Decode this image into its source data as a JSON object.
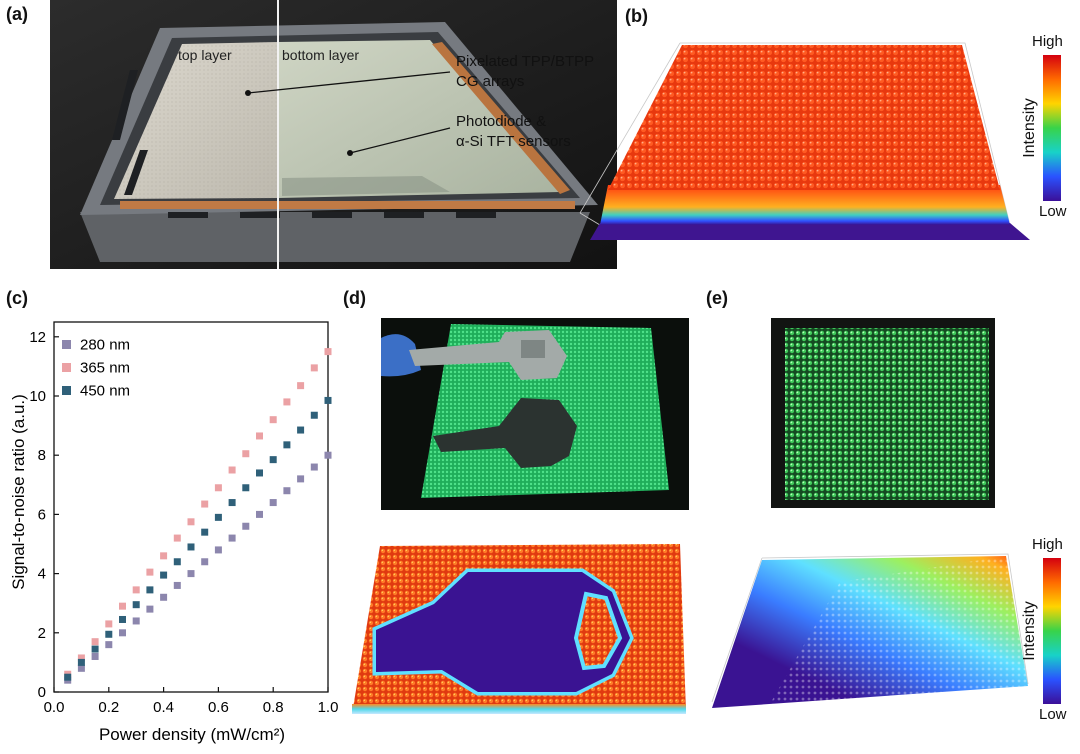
{
  "panels": {
    "a": {
      "label": "(a)",
      "top_layer": "top layer",
      "bottom_layer": "bottom layer",
      "annotation_1_line1": "Pixelated TPP/BTPP",
      "annotation_1_line2": "CG arrays",
      "annotation_2_line1": "Photodiode &",
      "annotation_2_line2": "α-Si TFT sensors"
    },
    "b": {
      "label": "(b)",
      "colorbar_high": "High",
      "colorbar_low": "Low",
      "colorbar_title": "Intensity"
    },
    "c": {
      "label": "(c)"
    },
    "d": {
      "label": "(d)"
    },
    "e": {
      "label": "(e)",
      "colorbar_high": "High",
      "colorbar_low": "Low",
      "colorbar_title": "Intensity"
    }
  },
  "chart_data": {
    "type": "scatter",
    "xlabel": "Power density (mW/cm²)",
    "ylabel": "Signal-to-noise ratio (a.u.)",
    "xlim": [
      0,
      1.0
    ],
    "ylim": [
      0,
      12.5
    ],
    "xticks": [
      "0.0",
      "0.2",
      "0.4",
      "0.6",
      "0.8",
      "1.0"
    ],
    "yticks": [
      "0",
      "2",
      "4",
      "6",
      "8",
      "10",
      "12"
    ],
    "x": [
      0.05,
      0.1,
      0.15,
      0.2,
      0.25,
      0.3,
      0.35,
      0.4,
      0.45,
      0.5,
      0.55,
      0.6,
      0.65,
      0.7,
      0.75,
      0.8,
      0.85,
      0.9,
      0.95,
      1.0
    ],
    "series": [
      {
        "name": "280 nm",
        "color": "#8c86ad",
        "values": [
          0.4,
          0.8,
          1.2,
          1.6,
          2.0,
          2.4,
          2.8,
          3.2,
          3.6,
          4.0,
          4.4,
          4.8,
          5.2,
          5.6,
          6.0,
          6.4,
          6.8,
          7.2,
          7.6,
          8.0
        ]
      },
      {
        "name": "365 nm",
        "color": "#eba1a4",
        "values": [
          0.6,
          1.15,
          1.7,
          2.3,
          2.9,
          3.45,
          4.05,
          4.6,
          5.2,
          5.75,
          6.35,
          6.9,
          7.5,
          8.05,
          8.65,
          9.2,
          9.8,
          10.35,
          10.95,
          11.5
        ]
      },
      {
        "name": "450 nm",
        "color": "#2f6079",
        "values": [
          0.5,
          1.0,
          1.45,
          1.95,
          2.45,
          2.95,
          3.45,
          3.95,
          4.4,
          4.9,
          5.4,
          5.9,
          6.4,
          6.9,
          7.4,
          7.85,
          8.35,
          8.85,
          9.35,
          9.85
        ]
      }
    ]
  }
}
